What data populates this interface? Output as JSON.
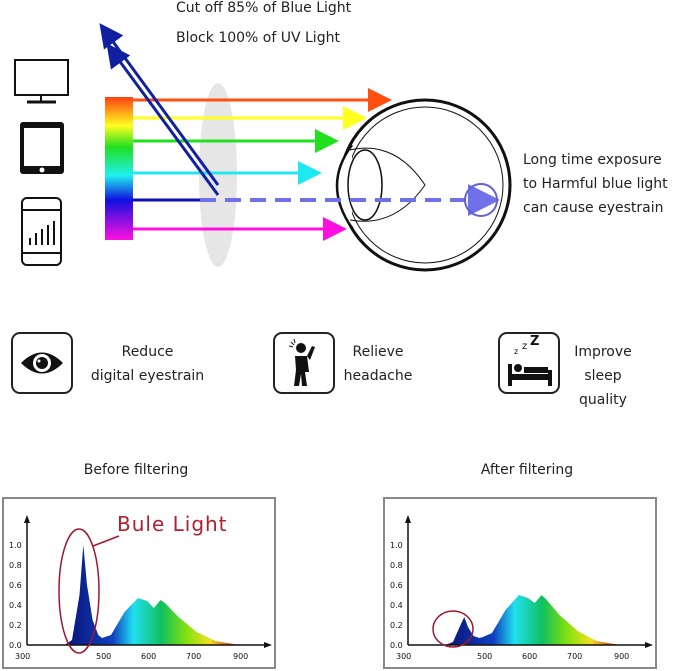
{
  "header": {
    "line1": "Cut off 85% of Blue Light",
    "line2": "Block 100% of UV Light"
  },
  "eye_note": [
    "Long time exposure",
    "to Harmful blue light",
    "can cause eyestrain"
  ],
  "devices": [
    "monitor-icon",
    "tablet-icon",
    "smartphone-icon"
  ],
  "benefits": [
    {
      "icon": "eye-icon",
      "line1": "Reduce",
      "line2": "digital eyestrain"
    },
    {
      "icon": "headache-person-icon",
      "line1": "Relieve",
      "line2": "headache"
    },
    {
      "icon": "sleeping-bed-icon",
      "line1": "Improve",
      "line2": "sleep quality"
    }
  ],
  "colors": {
    "blue_light": "#1020a0",
    "highlight": "#a01830",
    "spectrum": [
      "#ff5010",
      "#ffff20",
      "#20e020",
      "#20e8f0",
      "#1010d0",
      "#ff10e0"
    ]
  },
  "chart_data": [
    {
      "type": "area",
      "title": "Before filtering",
      "annotation": "Bule Light",
      "x_ticks": [
        300,
        500,
        600,
        700,
        900
      ],
      "y_ticks": [
        "0.0",
        "0.2",
        "0.4",
        "0.6",
        "0.8",
        "1.0"
      ],
      "ylim": [
        0,
        1.1
      ],
      "x": [
        400,
        420,
        440,
        450,
        460,
        475,
        490,
        500,
        520,
        550,
        580,
        600,
        615,
        630,
        640,
        670,
        720,
        800,
        900
      ],
      "y": [
        0,
        0.05,
        0.5,
        1.0,
        0.6,
        0.25,
        0.1,
        0.07,
        0.1,
        0.33,
        0.47,
        0.44,
        0.37,
        0.45,
        0.42,
        0.28,
        0.13,
        0.04,
        0
      ]
    },
    {
      "type": "area",
      "title": "After filtering",
      "x_ticks": [
        300,
        500,
        600,
        700,
        900
      ],
      "y_ticks": [
        "0.0",
        "0.2",
        "0.4",
        "0.6",
        "0.8",
        "1.0"
      ],
      "ylim": [
        0,
        1.1
      ],
      "x": [
        400,
        420,
        440,
        450,
        460,
        475,
        490,
        500,
        520,
        550,
        580,
        600,
        615,
        630,
        640,
        670,
        720,
        800,
        900
      ],
      "y": [
        0,
        0.03,
        0.2,
        0.28,
        0.18,
        0.09,
        0.07,
        0.08,
        0.12,
        0.35,
        0.5,
        0.47,
        0.42,
        0.5,
        0.46,
        0.3,
        0.14,
        0.04,
        0
      ]
    }
  ]
}
